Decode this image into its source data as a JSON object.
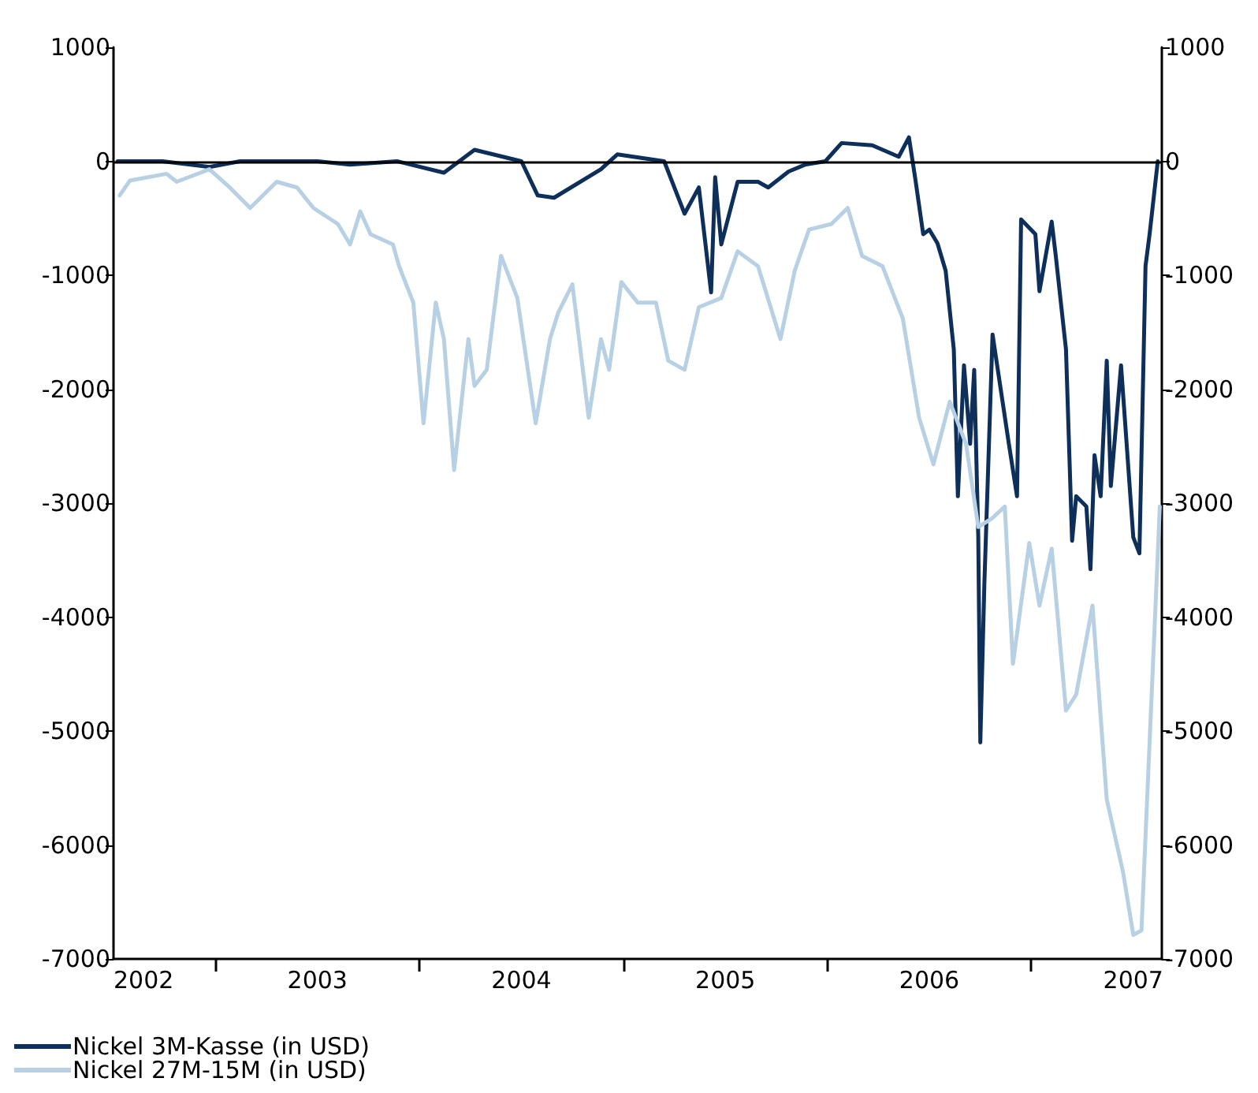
{
  "chart_data": {
    "type": "line",
    "xlim": [
      2002,
      2007.14
    ],
    "xticks": [
      {
        "value": 2002,
        "label": "2002"
      },
      {
        "value": 2002.5,
        "label": null
      },
      {
        "value": 2003,
        "label": "2003"
      },
      {
        "value": 2003.5,
        "label": null
      },
      {
        "value": 2004,
        "label": "2004"
      },
      {
        "value": 2004.5,
        "label": null
      },
      {
        "value": 2005,
        "label": "2005"
      },
      {
        "value": 2005.5,
        "label": null
      },
      {
        "value": 2006,
        "label": "2006"
      },
      {
        "value": 2006.5,
        "label": null
      },
      {
        "value": 2007,
        "label": "2007"
      }
    ],
    "ylim": [
      -7000,
      1000
    ],
    "yticks": [
      -7000,
      -6000,
      -5000,
      -4000,
      -3000,
      -2000,
      -1000,
      0,
      1000
    ],
    "y2lim": [
      -7000,
      1000
    ],
    "y2ticks": [
      -7000,
      -6000,
      -5000,
      -4000,
      -3000,
      -2000,
      -1000,
      0,
      1000
    ],
    "grid": false,
    "legend": "bottom left",
    "marker": "none",
    "line_style": "solid",
    "ref_lines": [
      {
        "axis": "y",
        "value": 0,
        "color": "#000000"
      }
    ],
    "series": [
      {
        "name": "Nickel 3M-Kasse (in USD)",
        "color": "#0d2f5a",
        "x": [
          2002.02,
          2002.24,
          2002.47,
          2002.62,
          2003.0,
          2003.16,
          2003.39,
          2003.62,
          2003.77,
          2004.0,
          2004.08,
          2004.16,
          2004.39,
          2004.47,
          2004.7,
          2004.8,
          2004.87,
          2004.93,
          2004.95,
          2004.98,
          2005.06,
          2005.16,
          2005.21,
          2005.31,
          2005.39,
          2005.49,
          2005.57,
          2005.72,
          2005.85,
          2005.9,
          2005.93,
          2005.97,
          2006.0,
          2006.04,
          2006.08,
          2006.12,
          2006.14,
          2006.17,
          2006.2,
          2006.22,
          2006.24,
          2006.25,
          2006.27,
          2006.31,
          2006.39,
          2006.43,
          2006.45,
          2006.52,
          2006.54,
          2006.6,
          2006.62,
          2006.67,
          2006.7,
          2006.72,
          2006.77,
          2006.79,
          2006.81,
          2006.84,
          2006.87,
          2006.89,
          2006.94,
          2007.0,
          2007.03,
          2007.06,
          2007.08,
          2007.12
        ],
        "values": [
          0,
          0,
          -50,
          0,
          0,
          -30,
          0,
          -100,
          100,
          0,
          -300,
          -320,
          -70,
          60,
          0,
          -460,
          -230,
          -1150,
          -140,
          -730,
          -180,
          -180,
          -230,
          -90,
          -30,
          0,
          160,
          140,
          40,
          210,
          -140,
          -640,
          -600,
          -720,
          -960,
          -1650,
          -2940,
          -1790,
          -2480,
          -1830,
          -3300,
          -5100,
          -3700,
          -1520,
          -2480,
          -2940,
          -510,
          -640,
          -1140,
          -530,
          -830,
          -1650,
          -3330,
          -2940,
          -3030,
          -3580,
          -2580,
          -2940,
          -1750,
          -2850,
          -1790,
          -3300,
          -3440,
          -920,
          -640,
          0
        ]
      },
      {
        "name": "Nickel 27M-15M (in USD)",
        "color": "#b8d0e4",
        "x": [
          2002.03,
          2002.08,
          2002.26,
          2002.31,
          2002.47,
          2002.57,
          2002.67,
          2002.8,
          2002.9,
          2002.98,
          2003.1,
          2003.16,
          2003.21,
          2003.26,
          2003.37,
          2003.4,
          2003.47,
          2003.52,
          2003.58,
          2003.62,
          2003.67,
          2003.74,
          2003.77,
          2003.83,
          2003.9,
          2003.98,
          2004.07,
          2004.14,
          2004.18,
          2004.25,
          2004.33,
          2004.39,
          2004.43,
          2004.49,
          2004.57,
          2004.66,
          2004.72,
          2004.8,
          2004.87,
          2004.98,
          2005.06,
          2005.16,
          2005.27,
          2005.34,
          2005.41,
          2005.52,
          2005.6,
          2005.67,
          2005.77,
          2005.87,
          2005.95,
          2006.02,
          2006.1,
          2006.18,
          2006.24,
          2006.31,
          2006.37,
          2006.41,
          2006.49,
          2006.54,
          2006.6,
          2006.67,
          2006.72,
          2006.8,
          2006.87,
          2006.95,
          2007.0,
          2007.04,
          2007.11,
          2007.13
        ],
        "values": [
          -300,
          -170,
          -110,
          -180,
          -70,
          -230,
          -410,
          -180,
          -230,
          -410,
          -550,
          -730,
          -440,
          -640,
          -730,
          -920,
          -1240,
          -2300,
          -1240,
          -1560,
          -2710,
          -1560,
          -1970,
          -1830,
          -830,
          -1200,
          -2300,
          -1560,
          -1330,
          -1080,
          -2250,
          -1560,
          -1830,
          -1060,
          -1240,
          -1240,
          -1750,
          -1830,
          -1280,
          -1200,
          -790,
          -920,
          -1560,
          -960,
          -600,
          -550,
          -410,
          -830,
          -920,
          -1380,
          -2250,
          -2660,
          -2110,
          -2480,
          -3210,
          -3130,
          -3030,
          -4410,
          -3350,
          -3900,
          -3400,
          -4820,
          -4680,
          -3900,
          -5600,
          -6240,
          -6790,
          -6750,
          -3860,
          -3030
        ]
      }
    ]
  }
}
